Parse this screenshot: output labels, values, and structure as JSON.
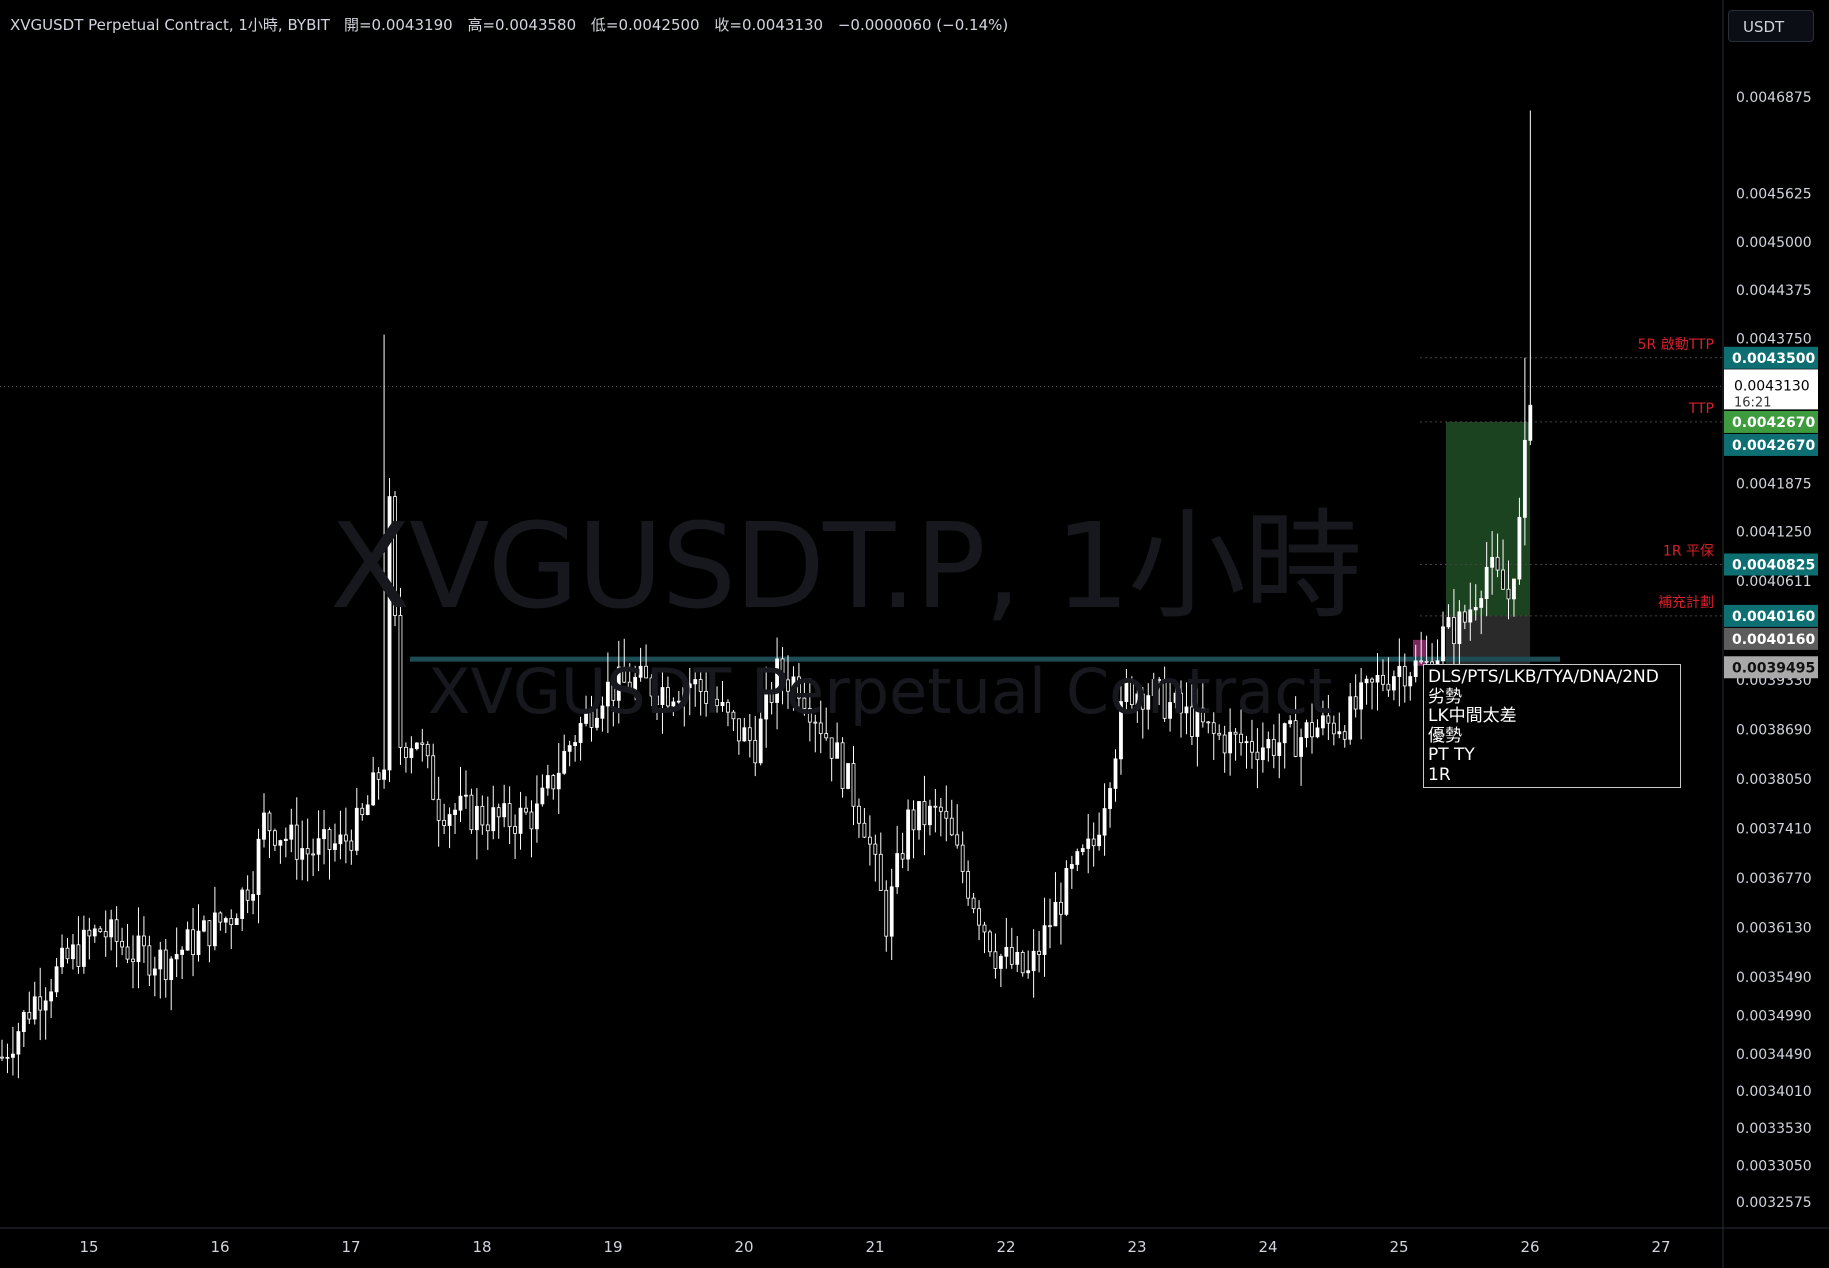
{
  "header": {
    "symbol": "XVGUSDT Perpetual Contract, 1小時, BYBIT",
    "open": "開=0.0043190",
    "high": "高=0.0043580",
    "low": "低=0.0042500",
    "close": "收=0.0043130",
    "change": "−0.0000060 (−0.14%)"
  },
  "currency_button": "USDT",
  "watermark": {
    "line1": "XVGUSDT.P, 1小時",
    "line2": "XVGUSDT Perpetual Contract"
  },
  "notes_box": [
    "DLS/PTS/LKB/TYA/DNA/2ND",
    "劣勢",
    "LK中間太差",
    "優勢",
    "PT TY",
    "1R"
  ],
  "colors": {
    "background": "#000000",
    "candle": "#ffffff",
    "teal_tag": "#0e6f73",
    "green_tag": "#3e9c3e",
    "gray_tag": "#5d5d5d",
    "light_gray_tag": "#a9a9a9",
    "annotation_red": "#d6202a",
    "profit_zone": "#1f4a22",
    "loss_zone": "#2a2a2a"
  },
  "chart_data": {
    "type": "candlestick",
    "symbol": "XVGUSDT.P",
    "interval": "1小時",
    "exchange": "BYBIT",
    "y_axis_ticks": [
      "0.0046875",
      "0.0045625",
      "0.0045000",
      "0.0044375",
      "0.0043750",
      "0.0041875",
      "0.0041250",
      "0.0040611",
      "0.0039330",
      "0.0038690",
      "0.0038050",
      "0.0037410",
      "0.0036770",
      "0.0036130",
      "0.0035490",
      "0.0034990",
      "0.0034490",
      "0.0034010",
      "0.0033530",
      "0.0033050",
      "0.0032575"
    ],
    "x_axis_ticks": [
      "15",
      "16",
      "17",
      "18",
      "19",
      "20",
      "21",
      "22",
      "23",
      "24",
      "25",
      "26",
      "27"
    ],
    "price_tags": [
      {
        "value": "0.0043500",
        "style": "teal"
      },
      {
        "value": "0.0043130",
        "sub": "16:21",
        "style": "current"
      },
      {
        "value": "0.0042670",
        "style": "green"
      },
      {
        "value": "0.0042670",
        "style": "teal"
      },
      {
        "value": "0.0040825",
        "style": "teal"
      },
      {
        "value": "0.0040160",
        "style": "teal"
      },
      {
        "value": "0.0040160",
        "style": "gray"
      },
      {
        "value": "0.0039495",
        "style": "lightgray"
      }
    ],
    "annotations": [
      {
        "text": "5R 啟動TTP",
        "price": 0.00435
      },
      {
        "text": "TTP",
        "price": 0.004267
      },
      {
        "text": "1R 平保",
        "price": 0.0040825
      },
      {
        "text": "補充計劃",
        "price": 0.004016
      }
    ],
    "position": {
      "entry": 0.004016,
      "target": 0.004267,
      "stop": 0.0039495
    },
    "horizontal_level": 0.00396,
    "current_price": 0.004313,
    "ylim": [
      0.00324,
      0.00478
    ],
    "candle_path": [
      [
        0,
        0.003445
      ],
      [
        6,
        0.00352
      ],
      [
        12,
        0.00357
      ],
      [
        18,
        0.00361
      ],
      [
        24,
        0.00358
      ],
      [
        30,
        0.00357
      ],
      [
        36,
        0.0036
      ],
      [
        42,
        0.00363
      ],
      [
        46,
        0.00368
      ],
      [
        48,
        0.00375
      ],
      [
        56,
        0.00371
      ],
      [
        62,
        0.00372
      ],
      [
        66,
        0.00375
      ],
      [
        70,
        0.00383
      ],
      [
        71,
        0.00415
      ],
      [
        73,
        0.00385
      ],
      [
        76,
        0.00386
      ],
      [
        80,
        0.00377
      ],
      [
        86,
        0.00376
      ],
      [
        92,
        0.00375
      ],
      [
        98,
        0.00376
      ],
      [
        104,
        0.00385
      ],
      [
        110,
        0.00392
      ],
      [
        116,
        0.00393
      ],
      [
        122,
        0.00392
      ],
      [
        126,
        0.00393
      ],
      [
        130,
        0.00391
      ],
      [
        134,
        0.00387
      ],
      [
        138,
        0.00385
      ],
      [
        142,
        0.00394
      ],
      [
        146,
        0.00393
      ],
      [
        152,
        0.00385
      ],
      [
        158,
        0.00375
      ],
      [
        162,
        0.00362
      ],
      [
        166,
        0.00375
      ],
      [
        172,
        0.00376
      ],
      [
        178,
        0.00365
      ],
      [
        182,
        0.00358
      ],
      [
        188,
        0.00355
      ],
      [
        192,
        0.00362
      ],
      [
        196,
        0.00368
      ],
      [
        200,
        0.00372
      ],
      [
        204,
        0.00385
      ],
      [
        206,
        0.00392
      ],
      [
        210,
        0.00392
      ],
      [
        216,
        0.00389
      ],
      [
        222,
        0.00386
      ],
      [
        228,
        0.00385
      ],
      [
        232,
        0.00385
      ],
      [
        238,
        0.00386
      ],
      [
        240,
        0.00387
      ],
      [
        246,
        0.00388
      ],
      [
        252,
        0.00393
      ],
      [
        256,
        0.00395
      ],
      [
        262,
        0.00395
      ],
      [
        264,
        0.00399
      ],
      [
        268,
        0.00401
      ],
      [
        272,
        0.00408
      ],
      [
        276,
        0.00404
      ],
      [
        278,
        0.00413
      ],
      [
        280,
        0.00431
      ]
    ]
  }
}
